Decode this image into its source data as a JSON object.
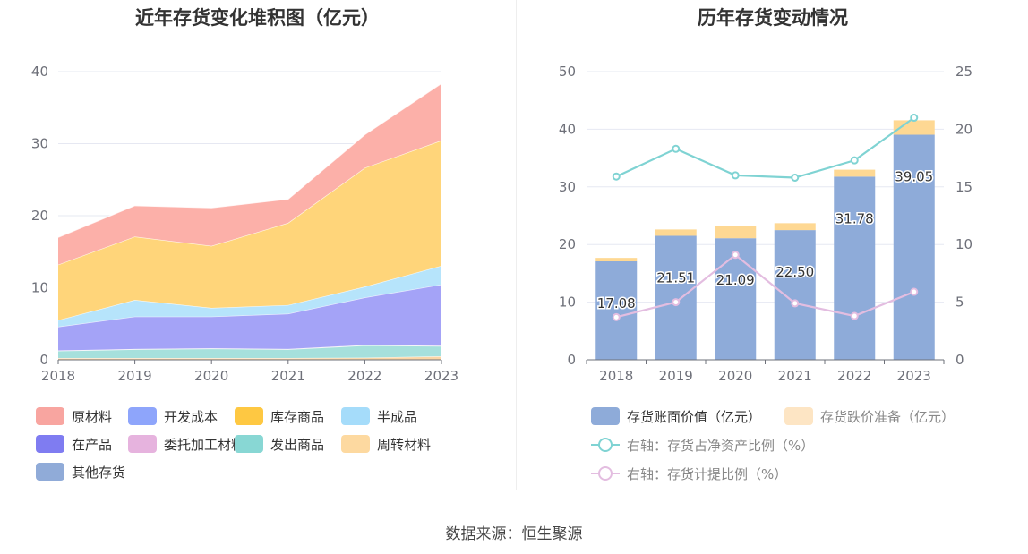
{
  "source": "数据来源：恒生聚源",
  "chart_data": [
    {
      "type": "area",
      "stacked": true,
      "title": "近年存货变化堆积图（亿元）",
      "categories": [
        "2018",
        "2019",
        "2020",
        "2021",
        "2022",
        "2023"
      ],
      "ylim": [
        0,
        40
      ],
      "yticks": [
        0,
        10,
        20,
        30,
        40
      ],
      "series": [
        {
          "name": "原材料",
          "color": "#fcb0a9",
          "legend_color": "#f8a5a0",
          "values": [
            3.8,
            4.3,
            5.3,
            3.3,
            4.6,
            7.9
          ]
        },
        {
          "name": "开发成本",
          "color": "#8ea5fb",
          "values": [
            0,
            0,
            0,
            0,
            0,
            0
          ]
        },
        {
          "name": "库存商品",
          "color": "#ffd57a",
          "legend_color": "#fec842",
          "values": [
            7.7,
            8.8,
            8.6,
            11.4,
            16.5,
            17.4
          ]
        },
        {
          "name": "半成品",
          "color": "#b6e4fb",
          "legend_color": "#a5dcfa",
          "values": [
            0.9,
            2.3,
            1.2,
            1.2,
            1.5,
            2.6
          ]
        },
        {
          "name": "在产品",
          "color": "#a4a3f7",
          "legend_color": "#7f7cf1",
          "values": [
            3.3,
            4.5,
            4.4,
            4.9,
            6.6,
            8.5
          ]
        },
        {
          "name": "委托加工材料",
          "color": "#e6b3de",
          "values": [
            0.05,
            0.05,
            0.05,
            0.05,
            0.05,
            0.05
          ]
        },
        {
          "name": "发出商品",
          "color": "#a6e0dc",
          "legend_color": "#88d7d4",
          "values": [
            1.0,
            1.2,
            1.3,
            1.2,
            1.7,
            1.4
          ]
        },
        {
          "name": "周转材料",
          "color": "#fbd6a5",
          "legend_color": "#fdd9a0",
          "values": [
            0.25,
            0.25,
            0.25,
            0.25,
            0.3,
            0.5
          ]
        },
        {
          "name": "其他存货",
          "color": "#90abd8",
          "values": [
            0,
            0,
            0,
            0,
            0,
            0
          ]
        }
      ]
    },
    {
      "type": "bar+line",
      "title": "历年存货变动情况",
      "categories": [
        "2018",
        "2019",
        "2020",
        "2021",
        "2022",
        "2023"
      ],
      "ylim_left": [
        0,
        50
      ],
      "yticks_left": [
        0,
        10,
        20,
        30,
        40,
        50
      ],
      "ylim_right": [
        0,
        25
      ],
      "yticks_right": [
        0,
        5,
        10,
        15,
        20,
        25
      ],
      "bars": [
        {
          "name": "存货账面价值（亿元）",
          "color": "#8eabd9",
          "values": [
            17.08,
            21.51,
            21.09,
            22.5,
            31.78,
            39.05
          ],
          "labels": [
            "17.08",
            "21.51",
            "21.09",
            "22.50",
            "31.78",
            "39.05"
          ]
        },
        {
          "name": "存货跌价准备（亿元）",
          "color": "#fed893",
          "legend_color": "#fde5c4",
          "values": [
            0.6,
            1.1,
            2.1,
            1.2,
            1.2,
            2.5
          ]
        }
      ],
      "lines": [
        {
          "name": "右轴：存货占净资产比例（%）",
          "color": "#7fd3d3",
          "values": [
            15.9,
            18.3,
            16.0,
            15.8,
            17.3,
            21.0
          ]
        },
        {
          "name": "右轴：存货计提比例（%）",
          "color": "#e3bde0",
          "values": [
            3.7,
            5.0,
            9.1,
            4.9,
            3.8,
            5.9
          ]
        }
      ]
    }
  ]
}
